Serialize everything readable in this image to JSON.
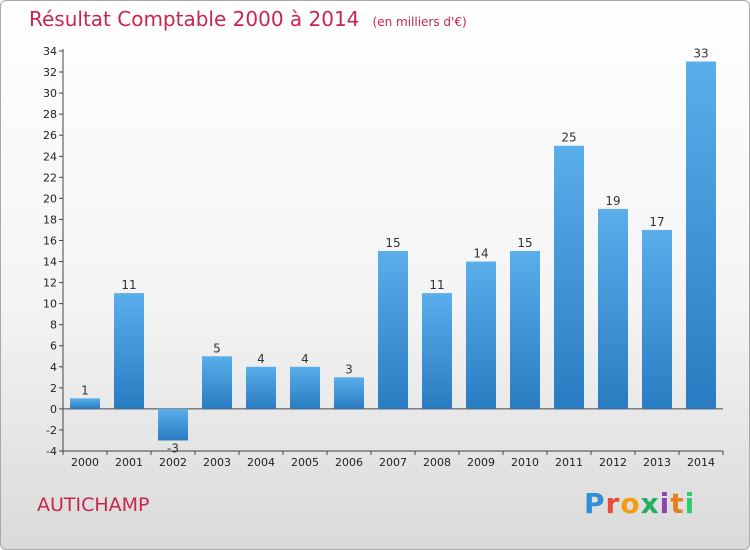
{
  "header": {
    "title": "Résultat Comptable 2000 à 2014",
    "subtitle": "(en milliers d'€)"
  },
  "footer": {
    "place": "AUTICHAMP",
    "logo_text": "Proxiti",
    "logo_colors": [
      "#2e8fd6",
      "#e74c3c",
      "#f39c12",
      "#27ae60",
      "#8e44ad",
      "#e67e22",
      "#2ecc71"
    ]
  },
  "chart_data": {
    "type": "bar",
    "categories": [
      "2000",
      "2001",
      "2002",
      "2003",
      "2004",
      "2005",
      "2006",
      "2007",
      "2008",
      "2009",
      "2010",
      "2011",
      "2012",
      "2013",
      "2014"
    ],
    "values": [
      1,
      11,
      -3,
      5,
      4,
      4,
      3,
      15,
      11,
      14,
      15,
      25,
      19,
      17,
      33
    ],
    "title": "Résultat Comptable 2000 à 2014",
    "subtitle": "(en milliers d'€)",
    "ylim": [
      -4,
      34
    ],
    "yticks": [
      -4,
      -2,
      0,
      2,
      4,
      6,
      8,
      10,
      12,
      14,
      16,
      18,
      20,
      22,
      24,
      26,
      28,
      30,
      32,
      34
    ],
    "grid": false,
    "colors": {
      "bar_top": "#5aaeea",
      "bar_bottom": "#2a7cc2",
      "axis": "#444444"
    }
  }
}
